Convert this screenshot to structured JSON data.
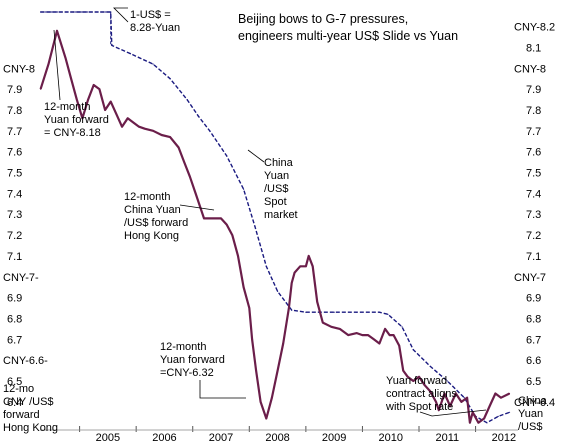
{
  "chart_data": {
    "type": "line",
    "title_lines": [
      "Beijing bows to G-7 pressures,",
      "engineers multi-year US$ Slide vs Yuan"
    ],
    "x_ticks": [
      "2005",
      "2006",
      "2007",
      "2008",
      "2009",
      "2010",
      "2011",
      "2012"
    ],
    "xlim": [
      2004.3,
      2012.75
    ],
    "left_y_ticks": [
      "7.9",
      "7.8",
      "7.7",
      "7.6",
      "7.5",
      "7.4",
      "7.3",
      "7.2",
      "7.1",
      "6.9",
      "6.8",
      "6.7",
      "6.5",
      "6.4"
    ],
    "right_y_ticks": [
      "8.1",
      "7.9",
      "7.8",
      "7.7",
      "7.6",
      "7.5",
      "7.4",
      "7.3",
      "7.2",
      "7.1",
      "6.9",
      "6.8",
      "6.7",
      "6.6",
      "6.5"
    ],
    "ylim": [
      6.265,
      8.27
    ],
    "left_special_labels": [
      {
        "text": "CNY-8",
        "y": 8.0
      },
      {
        "text": "CNY-7-",
        "y": 7.0
      },
      {
        "text": "CNY-6.6-",
        "y": 6.6
      }
    ],
    "right_special_labels": [
      {
        "text": "CNY-8.2",
        "y": 8.2
      },
      {
        "text": "CNY-8",
        "y": 8.0
      },
      {
        "text": "CNY-7",
        "y": 7.0
      },
      {
        "text": "CNY-6.4",
        "y": 6.4
      }
    ],
    "series": [
      {
        "color": "#1a1a80",
        "x": [
          2004.31,
          2004.9,
          2005.55,
          2005.57,
          2005.9,
          2006.3,
          2006.6,
          2006.9,
          2007.1,
          2007.3,
          2007.6,
          2007.9,
          2008.1,
          2008.3,
          2008.5,
          2008.75,
          2009.0,
          2009.5,
          2009.9,
          2010.3,
          2010.45,
          2010.7,
          2010.9,
          2011.2,
          2011.5,
          2011.8,
          2012.0,
          2012.2,
          2012.4,
          2012.6
        ],
        "values": [
          8.27,
          8.27,
          8.27,
          8.11,
          8.07,
          8.02,
          7.95,
          7.85,
          7.77,
          7.7,
          7.58,
          7.42,
          7.24,
          7.05,
          6.93,
          6.84,
          6.83,
          6.83,
          6.83,
          6.83,
          6.82,
          6.76,
          6.65,
          6.57,
          6.5,
          6.42,
          6.33,
          6.3,
          6.33,
          6.35
        ]
      },
      {
        "color": "#6b1e4a",
        "x": [
          2004.31,
          2004.45,
          2004.6,
          2004.75,
          2004.85,
          2004.95,
          2005.05,
          2005.15,
          2005.25,
          2005.35,
          2005.45,
          2005.55,
          2005.65,
          2005.75,
          2005.85,
          2005.95,
          2006.05,
          2006.15,
          2006.3,
          2006.45,
          2006.6,
          2006.75,
          2006.85,
          2006.95,
          2007.05,
          2007.2,
          2007.35,
          2007.5,
          2007.6,
          2007.7,
          2007.8,
          2007.9,
          2008.0,
          2008.05,
          2008.12,
          2008.2,
          2008.3,
          2008.4,
          2008.5,
          2008.6,
          2008.7,
          2008.75,
          2008.8,
          2008.9,
          2009.0,
          2009.05,
          2009.12,
          2009.2,
          2009.3,
          2009.45,
          2009.6,
          2009.75,
          2009.9,
          2010.0,
          2010.1,
          2010.2,
          2010.3,
          2010.4,
          2010.48,
          2010.55,
          2010.65,
          2010.72,
          2010.8,
          2010.9,
          2011.0,
          2011.1,
          2011.2,
          2011.3,
          2011.35,
          2011.45,
          2011.55,
          2011.65,
          2011.75,
          2011.85,
          2011.9,
          2011.95,
          2012.05,
          2012.15,
          2012.25,
          2012.35,
          2012.45,
          2012.6
        ],
        "values": [
          7.9,
          8.02,
          8.18,
          8.05,
          7.95,
          7.85,
          7.76,
          7.85,
          7.92,
          7.9,
          7.8,
          7.84,
          7.78,
          7.72,
          7.76,
          7.74,
          7.72,
          7.71,
          7.7,
          7.68,
          7.67,
          7.62,
          7.55,
          7.48,
          7.4,
          7.28,
          7.28,
          7.28,
          7.25,
          7.2,
          7.1,
          6.95,
          6.85,
          6.7,
          6.55,
          6.4,
          6.32,
          6.42,
          6.55,
          6.68,
          6.85,
          6.97,
          7.02,
          7.05,
          7.05,
          7.1,
          7.05,
          6.88,
          6.78,
          6.76,
          6.75,
          6.72,
          6.73,
          6.72,
          6.72,
          6.7,
          6.68,
          6.75,
          6.72,
          6.72,
          6.67,
          6.55,
          6.52,
          6.5,
          6.52,
          6.48,
          6.45,
          6.4,
          6.36,
          6.44,
          6.38,
          6.44,
          6.4,
          6.42,
          6.3,
          6.35,
          6.3,
          6.32,
          6.38,
          6.44,
          6.42,
          6.44
        ]
      }
    ],
    "annotations": [
      {
        "lines": [
          "1-US$ =",
          "8.28-Yuan"
        ],
        "color": "#000000"
      },
      {
        "lines": [
          "12-month",
          "Yuan forward",
          "= CNY-8.18"
        ],
        "color": "#000000"
      },
      {
        "lines": [
          "China",
          "Yuan",
          "/US$",
          "Spot",
          "market"
        ],
        "color": "#1a1a80"
      },
      {
        "lines": [
          "12-month",
          "China Yuan",
          "/US$ forward",
          "Hong Kong"
        ],
        "color": "#6b1e4a"
      },
      {
        "lines": [
          "12-month",
          "Yuan forward",
          "=CNY-6.32"
        ],
        "color": "#000000"
      },
      {
        "lines": [
          "Yuan forwad",
          "contract aligns",
          "with Spot rate"
        ],
        "color": "#000000"
      },
      {
        "lines": [
          "12-mo",
          "CNY /US$",
          "forward",
          "Hong Kong"
        ],
        "color": "#6b1e4a"
      },
      {
        "lines": [
          "China",
          "Yuan",
          "/US$"
        ],
        "color": "#1a1a80"
      }
    ]
  }
}
